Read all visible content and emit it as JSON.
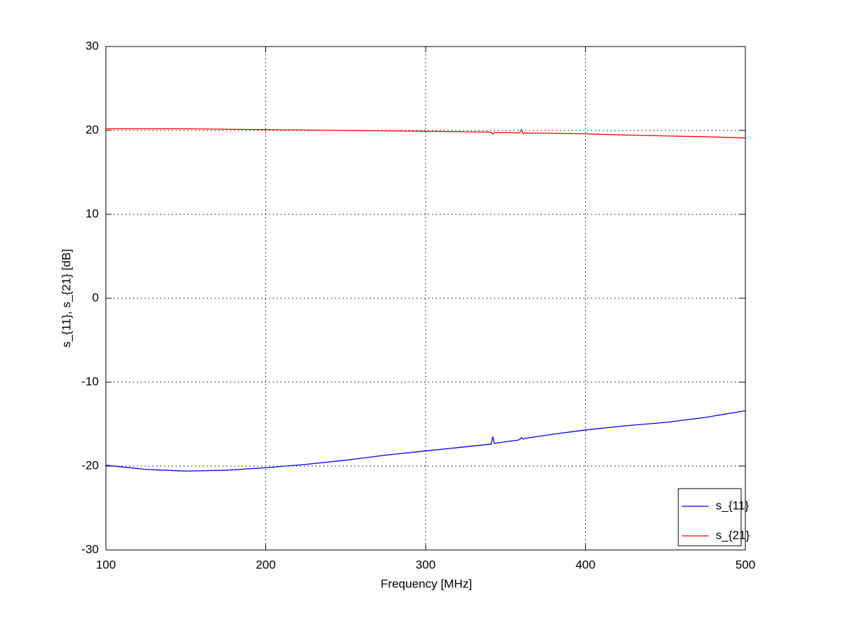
{
  "chart_data": {
    "type": "line",
    "xlabel": "Frequency [MHz]",
    "ylabel": "s_{11}, s_{21} [dB]",
    "x": [
      100,
      125,
      150,
      175,
      200,
      225,
      250,
      275,
      300,
      320,
      340,
      341,
      342,
      343,
      350,
      358,
      359,
      360,
      361,
      362,
      380,
      400,
      425,
      450,
      475,
      500
    ],
    "series": [
      {
        "name": "s_{11}",
        "color": "#0000ff",
        "values": [
          -19.9,
          -20.4,
          -20.6,
          -20.5,
          -20.2,
          -19.8,
          -19.3,
          -18.7,
          -18.2,
          -17.8,
          -17.4,
          -17.4,
          -16.5,
          -17.3,
          -17.1,
          -16.9,
          -16.8,
          -16.6,
          -16.8,
          -16.7,
          -16.2,
          -15.7,
          -15.2,
          -14.8,
          -14.2,
          -13.4
        ]
      },
      {
        "name": "s_{21}",
        "color": "#ff0000",
        "values": [
          20.2,
          20.2,
          20.2,
          20.15,
          20.1,
          20.05,
          20.0,
          19.95,
          19.9,
          19.85,
          19.8,
          19.75,
          19.55,
          19.75,
          19.75,
          19.7,
          19.8,
          20.1,
          19.6,
          19.7,
          19.65,
          19.6,
          19.45,
          19.35,
          19.25,
          19.1
        ]
      }
    ],
    "xlim": [
      100,
      500
    ],
    "xticks": [
      100,
      200,
      300,
      400,
      500
    ],
    "ylim": [
      -30,
      30
    ],
    "yticks": [
      -30,
      -20,
      -10,
      0,
      10,
      20,
      30
    ],
    "grid": true,
    "legend": "lower right"
  }
}
